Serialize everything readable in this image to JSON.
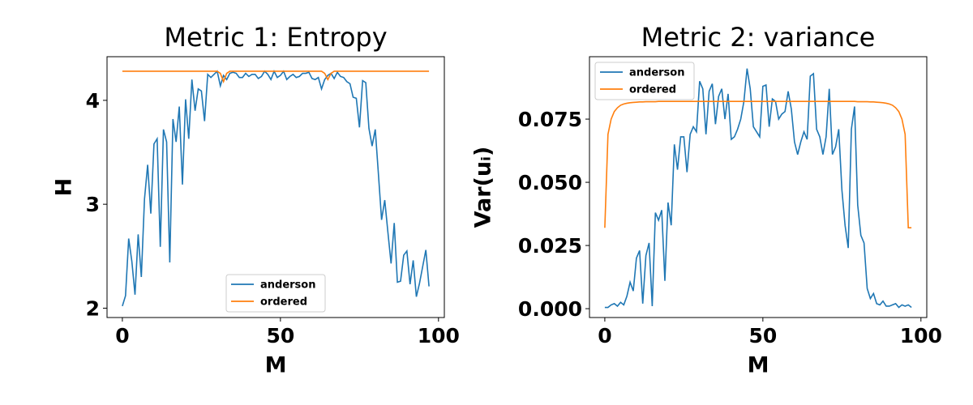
{
  "chart_data": [
    {
      "type": "line",
      "title": "Metric 1: Entropy",
      "xlabel": "M",
      "ylabel": "H",
      "x": [
        0,
        1,
        2,
        3,
        4,
        5,
        6,
        7,
        8,
        9,
        10,
        11,
        12,
        13,
        14,
        15,
        16,
        17,
        18,
        19,
        20,
        21,
        22,
        23,
        24,
        25,
        26,
        27,
        28,
        29,
        30,
        31,
        32,
        33,
        34,
        35,
        36,
        37,
        38,
        39,
        40,
        41,
        42,
        43,
        44,
        45,
        46,
        47,
        48,
        49,
        50,
        51,
        52,
        53,
        54,
        55,
        56,
        57,
        58,
        59,
        60,
        61,
        62,
        63,
        64,
        65,
        66,
        67,
        68,
        69,
        70,
        71,
        72,
        73,
        74,
        75,
        76,
        77,
        78,
        79,
        80,
        81,
        82,
        83,
        84,
        85,
        86,
        87,
        88,
        89,
        90,
        91,
        92,
        93,
        94,
        95,
        96,
        97
      ],
      "series": [
        {
          "name": "anderson",
          "color": "#1f77b4",
          "values": [
            2.02,
            2.12,
            2.67,
            2.45,
            2.13,
            2.71,
            2.3,
            3.05,
            3.38,
            2.91,
            3.58,
            3.63,
            2.59,
            3.72,
            3.6,
            2.44,
            3.82,
            3.6,
            3.94,
            3.19,
            4.01,
            3.63,
            4.2,
            3.9,
            4.11,
            4.09,
            3.8,
            4.25,
            4.22,
            4.25,
            4.28,
            4.14,
            4.24,
            4.2,
            4.26,
            4.27,
            4.26,
            4.22,
            4.22,
            4.26,
            4.23,
            4.25,
            4.25,
            4.21,
            4.23,
            4.28,
            4.25,
            4.2,
            4.28,
            4.22,
            4.24,
            4.28,
            4.2,
            4.23,
            4.25,
            4.22,
            4.23,
            4.26,
            4.26,
            4.27,
            4.21,
            4.2,
            4.22,
            4.11,
            4.2,
            4.24,
            4.26,
            4.21,
            4.27,
            4.23,
            4.22,
            4.18,
            4.16,
            4.03,
            4.02,
            3.74,
            4.19,
            4.17,
            3.73,
            3.56,
            3.72,
            3.29,
            2.85,
            3.04,
            2.73,
            2.43,
            2.82,
            2.25,
            2.26,
            2.51,
            2.55,
            2.23,
            2.46,
            2.11,
            2.24,
            2.4,
            2.56,
            2.21
          ]
        },
        {
          "name": "ordered",
          "color": "#ff7f0e",
          "values": [
            4.28,
            4.28,
            4.28,
            4.28,
            4.28,
            4.28,
            4.28,
            4.28,
            4.28,
            4.28,
            4.28,
            4.28,
            4.28,
            4.28,
            4.28,
            4.28,
            4.28,
            4.28,
            4.28,
            4.28,
            4.28,
            4.28,
            4.28,
            4.28,
            4.28,
            4.28,
            4.28,
            4.28,
            4.28,
            4.28,
            4.28,
            4.26,
            4.18,
            4.26,
            4.28,
            4.28,
            4.28,
            4.28,
            4.28,
            4.28,
            4.28,
            4.28,
            4.28,
            4.28,
            4.28,
            4.28,
            4.28,
            4.28,
            4.28,
            4.28,
            4.28,
            4.28,
            4.28,
            4.28,
            4.28,
            4.28,
            4.28,
            4.28,
            4.28,
            4.28,
            4.28,
            4.28,
            4.28,
            4.28,
            4.26,
            4.2,
            4.26,
            4.28,
            4.28,
            4.28,
            4.28,
            4.28,
            4.28,
            4.28,
            4.28,
            4.28,
            4.28,
            4.28,
            4.28,
            4.28,
            4.28,
            4.28,
            4.28,
            4.28,
            4.28,
            4.28,
            4.28,
            4.28,
            4.28,
            4.28,
            4.28,
            4.28,
            4.28,
            4.28,
            4.28,
            4.28,
            4.28,
            4.28
          ]
        }
      ],
      "xlim": [
        -4.85,
        101.85
      ],
      "xticks": [
        0,
        50,
        100
      ],
      "ylim": [
        1.91,
        4.42
      ],
      "yticks": [
        2,
        3,
        4
      ],
      "legend": "lower center"
    },
    {
      "type": "line",
      "title": "Metric 2: variance",
      "xlabel": "M",
      "ylabel": "Var(uᵢ)",
      "x": [
        0,
        1,
        2,
        3,
        4,
        5,
        6,
        7,
        8,
        9,
        10,
        11,
        12,
        13,
        14,
        15,
        16,
        17,
        18,
        19,
        20,
        21,
        22,
        23,
        24,
        25,
        26,
        27,
        28,
        29,
        30,
        31,
        32,
        33,
        34,
        35,
        36,
        37,
        38,
        39,
        40,
        41,
        42,
        43,
        44,
        45,
        46,
        47,
        48,
        49,
        50,
        51,
        52,
        53,
        54,
        55,
        56,
        57,
        58,
        59,
        60,
        61,
        62,
        63,
        64,
        65,
        66,
        67,
        68,
        69,
        70,
        71,
        72,
        73,
        74,
        75,
        76,
        77,
        78,
        79,
        80,
        81,
        82,
        83,
        84,
        85,
        86,
        87,
        88,
        89,
        90,
        91,
        92,
        93,
        94,
        95,
        96,
        97
      ],
      "series": [
        {
          "name": "anderson",
          "color": "#1f77b4",
          "values": [
            0.0005,
            0.0005,
            0.0015,
            0.002,
            0.001,
            0.0025,
            0.0015,
            0.005,
            0.0105,
            0.007,
            0.02,
            0.023,
            0.002,
            0.021,
            0.026,
            0.001,
            0.038,
            0.035,
            0.039,
            0.011,
            0.042,
            0.033,
            0.065,
            0.055,
            0.068,
            0.068,
            0.054,
            0.069,
            0.072,
            0.07,
            0.09,
            0.087,
            0.069,
            0.086,
            0.089,
            0.073,
            0.084,
            0.087,
            0.075,
            0.085,
            0.067,
            0.068,
            0.071,
            0.075,
            0.082,
            0.095,
            0.087,
            0.072,
            0.07,
            0.068,
            0.088,
            0.0885,
            0.072,
            0.083,
            0.082,
            0.075,
            0.077,
            0.078,
            0.086,
            0.079,
            0.066,
            0.061,
            0.066,
            0.07,
            0.067,
            0.092,
            0.093,
            0.071,
            0.068,
            0.061,
            0.068,
            0.087,
            0.061,
            0.064,
            0.071,
            0.047,
            0.033,
            0.024,
            0.071,
            0.08,
            0.041,
            0.029,
            0.026,
            0.008,
            0.004,
            0.006,
            0.002,
            0.0015,
            0.003,
            0.001,
            0.001,
            0.0015,
            0.002,
            0.0005,
            0.0015,
            0.001,
            0.0015,
            0.0005
          ]
        },
        {
          "name": "ordered",
          "color": "#ff7f0e",
          "values": [
            0.032,
            0.069,
            0.075,
            0.078,
            0.0795,
            0.0805,
            0.081,
            0.0813,
            0.0815,
            0.0816,
            0.0817,
            0.0818,
            0.0818,
            0.0819,
            0.0819,
            0.0819,
            0.0819,
            0.082,
            0.082,
            0.082,
            0.082,
            0.082,
            0.082,
            0.082,
            0.082,
            0.082,
            0.082,
            0.082,
            0.082,
            0.082,
            0.082,
            0.082,
            0.082,
            0.082,
            0.082,
            0.082,
            0.082,
            0.082,
            0.082,
            0.082,
            0.082,
            0.082,
            0.082,
            0.082,
            0.082,
            0.082,
            0.082,
            0.082,
            0.082,
            0.082,
            0.082,
            0.082,
            0.082,
            0.082,
            0.082,
            0.082,
            0.082,
            0.082,
            0.082,
            0.082,
            0.082,
            0.082,
            0.082,
            0.082,
            0.082,
            0.082,
            0.082,
            0.082,
            0.082,
            0.082,
            0.082,
            0.082,
            0.082,
            0.082,
            0.082,
            0.082,
            0.082,
            0.082,
            0.082,
            0.082,
            0.0819,
            0.0819,
            0.0819,
            0.0819,
            0.0818,
            0.0818,
            0.0817,
            0.0816,
            0.0815,
            0.0813,
            0.081,
            0.0805,
            0.0795,
            0.078,
            0.075,
            0.069,
            0.032,
            0.032
          ]
        }
      ],
      "xlim": [
        -4.85,
        101.85
      ],
      "xticks": [
        0,
        50,
        100
      ],
      "ylim": [
        -0.0035,
        0.0997
      ],
      "yticks": [
        {
          "value": 0,
          "label": "0.000"
        },
        {
          "value": 0.025,
          "label": "0.025"
        },
        {
          "value": 0.05,
          "label": "0.050"
        },
        {
          "value": 0.075,
          "label": "0.075"
        }
      ],
      "legend": "upper left"
    }
  ]
}
